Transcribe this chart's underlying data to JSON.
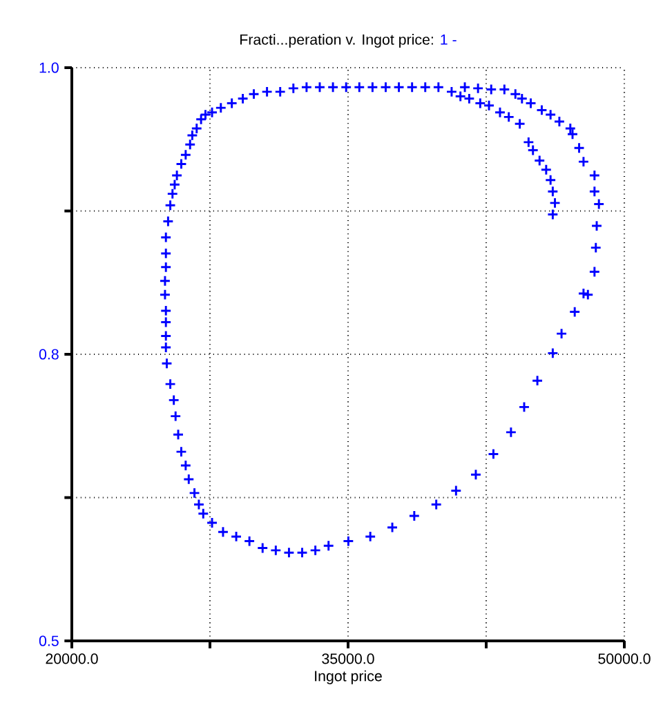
{
  "chart_data": {
    "type": "scatter",
    "title": "Fracti...peration v. Ingot price:",
    "xlabel": "Ingot price",
    "xlim": [
      20000,
      50000
    ],
    "ylim": [
      0.5,
      1.0
    ],
    "xticks": [
      {
        "value": 20000,
        "label": "20000.0"
      },
      {
        "value": 27500,
        "label": null
      },
      {
        "value": 35000,
        "label": "35000.0"
      },
      {
        "value": 42500,
        "label": null
      },
      {
        "value": 50000,
        "label": "50000.0"
      }
    ],
    "yticks": [
      {
        "value": 0.5,
        "label": "0.5"
      },
      {
        "value": 0.625,
        "label": null
      },
      {
        "value": 0.75,
        "label": "0.8"
      },
      {
        "value": 0.875,
        "label": null
      },
      {
        "value": 1.0,
        "label": "1.0"
      }
    ],
    "grid": true,
    "marker": "cross",
    "series": [
      {
        "name": "1 -",
        "color": "#0000ff",
        "x": [
          46114,
          46233,
          46114,
          45994,
          45756,
          45397,
          45039,
          44800,
          44323,
          43727,
          43249,
          42652,
          42175,
          41578,
          41101,
          40623,
          48023,
          48381,
          48453,
          48501,
          48620,
          48381,
          48381,
          47784,
          47546,
          47188,
          47068,
          46472,
          45994,
          45517,
          44920,
          44443,
          44085,
          43488,
          42772,
          42056,
          41340,
          39907,
          39191,
          38475,
          37759,
          37043,
          36327,
          35611,
          34895,
          34179,
          33462,
          32746,
          32030,
          31314,
          30598,
          29882,
          29285,
          28688,
          28092,
          27614,
          27256,
          27018,
          26779,
          26540,
          26421,
          26182,
          25943,
          25705,
          25585,
          25466,
          25347,
          25227,
          25108,
          25108,
          25108,
          25060,
          25060,
          25108,
          25108,
          25108,
          25108,
          25156,
          25347,
          25538,
          25633,
          25776,
          25943,
          26182,
          26349,
          26659,
          26898,
          27136,
          27614,
          28211,
          28927,
          29643,
          30359,
          31075,
          31791,
          32507,
          33224,
          33940,
          35014,
          36207,
          37401,
          38594,
          39788,
          40862,
          41936,
          42891,
          43846,
          44562,
          45278,
          46114,
          46591,
          47307,
          47784
        ],
        "values": [
          0.872,
          0.882,
          0.892,
          0.902,
          0.911,
          0.919,
          0.928,
          0.935,
          0.951,
          0.957,
          0.961,
          0.967,
          0.969,
          0.973,
          0.975,
          0.979,
          0.802,
          0.822,
          0.843,
          0.862,
          0.881,
          0.892,
          0.906,
          0.918,
          0.93,
          0.942,
          0.947,
          0.953,
          0.959,
          0.963,
          0.969,
          0.973,
          0.977,
          0.981,
          0.981,
          0.982,
          0.983,
          0.983,
          0.983,
          0.983,
          0.983,
          0.983,
          0.983,
          0.983,
          0.983,
          0.983,
          0.983,
          0.983,
          0.982,
          0.979,
          0.979,
          0.977,
          0.973,
          0.969,
          0.965,
          0.961,
          0.959,
          0.955,
          0.947,
          0.941,
          0.933,
          0.924,
          0.916,
          0.906,
          0.898,
          0.89,
          0.88,
          0.866,
          0.852,
          0.838,
          0.826,
          0.814,
          0.802,
          0.788,
          0.778,
          0.766,
          0.756,
          0.742,
          0.724,
          0.71,
          0.696,
          0.68,
          0.665,
          0.653,
          0.641,
          0.629,
          0.619,
          0.611,
          0.603,
          0.595,
          0.591,
          0.587,
          0.581,
          0.579,
          0.577,
          0.577,
          0.579,
          0.583,
          0.587,
          0.591,
          0.599,
          0.609,
          0.619,
          0.631,
          0.645,
          0.663,
          0.682,
          0.704,
          0.727,
          0.751,
          0.768,
          0.787,
          0.803
        ]
      }
    ]
  }
}
